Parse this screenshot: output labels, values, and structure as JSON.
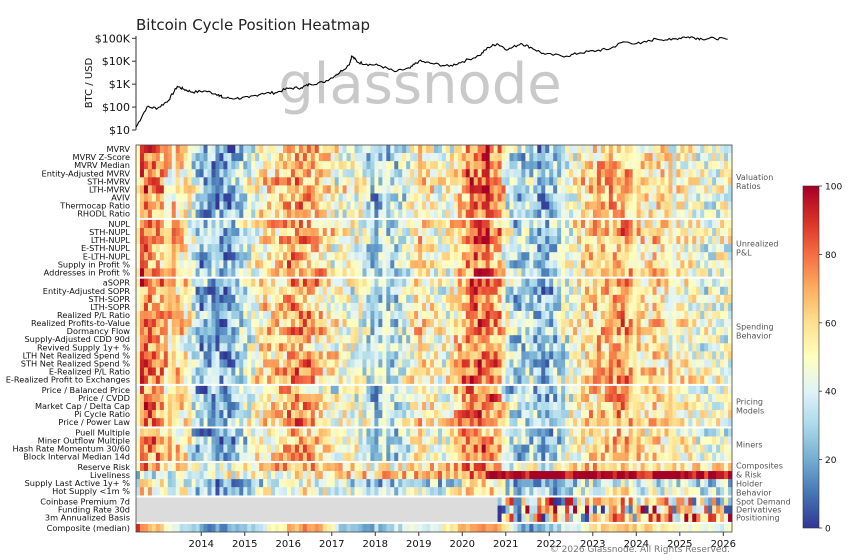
{
  "title": "Bitcoin Cycle Position Heatmap",
  "watermark": "glassnode",
  "copyright": "© 2026 Glassnode. All Rights Reserved.",
  "chart_data": [
    {
      "type": "line",
      "ylabel": "BTC / USD",
      "yscale": "log",
      "yticks": [
        "$10",
        "$100",
        "$1K",
        "$10K",
        "$100K"
      ],
      "ytick_values": [
        10,
        100,
        1000,
        10000,
        100000
      ],
      "x": [
        2013.0,
        2013.25,
        2013.5,
        2013.75,
        2013.95,
        2014.1,
        2014.3,
        2014.6,
        2014.9,
        2015.0,
        2015.3,
        2015.6,
        2015.9,
        2016.2,
        2016.5,
        2016.8,
        2017.0,
        2017.3,
        2017.6,
        2017.9,
        2017.96,
        2018.1,
        2018.3,
        2018.6,
        2018.95,
        2019.3,
        2019.5,
        2019.8,
        2020.2,
        2020.5,
        2020.9,
        2021.1,
        2021.3,
        2021.55,
        2021.85,
        2022.1,
        2022.4,
        2022.9,
        2023.2,
        2023.6,
        2023.9,
        2024.2,
        2024.6,
        2024.95,
        2025.3,
        2025.6,
        2025.8,
        2026.0,
        2026.3,
        2026.6
      ],
      "y": [
        13,
        100,
        90,
        200,
        800,
        600,
        450,
        500,
        350,
        250,
        240,
        260,
        400,
        420,
        650,
        700,
        1000,
        1200,
        2500,
        7000,
        17000,
        9000,
        7500,
        6500,
        3500,
        5000,
        10000,
        8000,
        6000,
        9500,
        18000,
        40000,
        58000,
        32000,
        60000,
        38000,
        20000,
        16800,
        23000,
        29000,
        35000,
        70000,
        58000,
        95000,
        85000,
        115000,
        110000,
        95000,
        100000,
        90000
      ],
      "color": "#000000"
    },
    {
      "type": "heatmap",
      "x_ticks": [
        "2014",
        "2015",
        "2016",
        "2017",
        "2018",
        "2019",
        "2020",
        "2021",
        "2022",
        "2023",
        "2024",
        "2025",
        "2026"
      ],
      "x_range": [
        2013.0,
        2026.7
      ],
      "colorbar": {
        "min": 0,
        "max": 100,
        "ticks": [
          0,
          20,
          40,
          60,
          80,
          100
        ],
        "colormap": "RdYlBu_r"
      },
      "rows": [
        "MVRV",
        "MVRV Z-Score",
        "MVRV Median",
        "Entity-Adjusted MVRV",
        "STH-MVRV",
        "LTH-MVRV",
        "AVIV",
        "Thermocap Ratio",
        "RHODL Ratio",
        "NUPL",
        "STH-NUPL",
        "LTH-NUPL",
        "E-STH-NUPL",
        "E-LTH-NUPL",
        "Supply in Profit %",
        "Addresses in Profit %",
        "aSOPR",
        "Entity-Adjusted SOPR",
        "STH-SOPR",
        "LTH-SOPR",
        "Realized P/L Ratio",
        "Realized Profits-to-Value",
        "Dormancy Flow",
        "Supply-Adjusted CDD 90d",
        "Revived Supply 1y+ %",
        "LTH Net Realized Spend %",
        "STH Net Realized Spend %",
        "E-Realized P/L Ratio",
        "E-Realized Profit to Exchanges",
        "Price / Balanced Price",
        "Price / CVDD",
        "Market Cap / Delta Cap",
        "Pi Cycle Ratio",
        "Price / Power Law",
        "Puell Multiple",
        "Miner Outflow Multiple",
        "Hash Rate Momentum 30/60",
        "Block Interval Median 14d",
        "Reserve Risk",
        "Liveliness",
        "Supply Last Active 1y+ %",
        "Hot Supply <1m %",
        "Coinbase Premium 7d",
        "Funding Rate 30d",
        "3m Annualized Basis",
        "Composite (median)"
      ],
      "groups": [
        {
          "label": [
            "Valuation",
            "Ratios"
          ],
          "rows": [
            0,
            8
          ]
        },
        {
          "label": [
            "Unrealized",
            "P&L"
          ],
          "rows": [
            9,
            15
          ]
        },
        {
          "label": [
            "Spending",
            "Behavior"
          ],
          "rows": [
            16,
            28
          ]
        },
        {
          "label": [
            "Pricing",
            "Models"
          ],
          "rows": [
            29,
            33
          ]
        },
        {
          "label": [
            "Miners"
          ],
          "rows": [
            34,
            37
          ]
        },
        {
          "label": [
            "Composites",
            "& Risk",
            "Holder",
            "Behavior"
          ],
          "rows": [
            38,
            41
          ]
        },
        {
          "label": [
            "Spot Demand"
          ],
          "rows": [
            42,
            42
          ]
        },
        {
          "label": [
            "Derivatives"
          ],
          "rows": [
            43,
            43
          ]
        },
        {
          "label": [
            "Positioning"
          ],
          "rows": [
            44,
            44
          ]
        },
        {
          "label": [],
          "rows": [
            45,
            45
          ]
        }
      ],
      "missing_until": {
        "Coinbase Premium 7d": 2021.3,
        "Funding Rate 30d": 2021.3,
        "3m Annualized Basis": 2021.3
      },
      "row_level_by_year": [
        {
          "years": [
            2013,
            2014,
            2015,
            2016,
            2017,
            2018,
            2019,
            2020,
            2021,
            2022,
            2023,
            2024,
            2025,
            2026
          ],
          "level": [
            85,
            40,
            10,
            45,
            80,
            15,
            35,
            45,
            85,
            15,
            40,
            70,
            55,
            45
          ]
        }
      ]
    }
  ]
}
